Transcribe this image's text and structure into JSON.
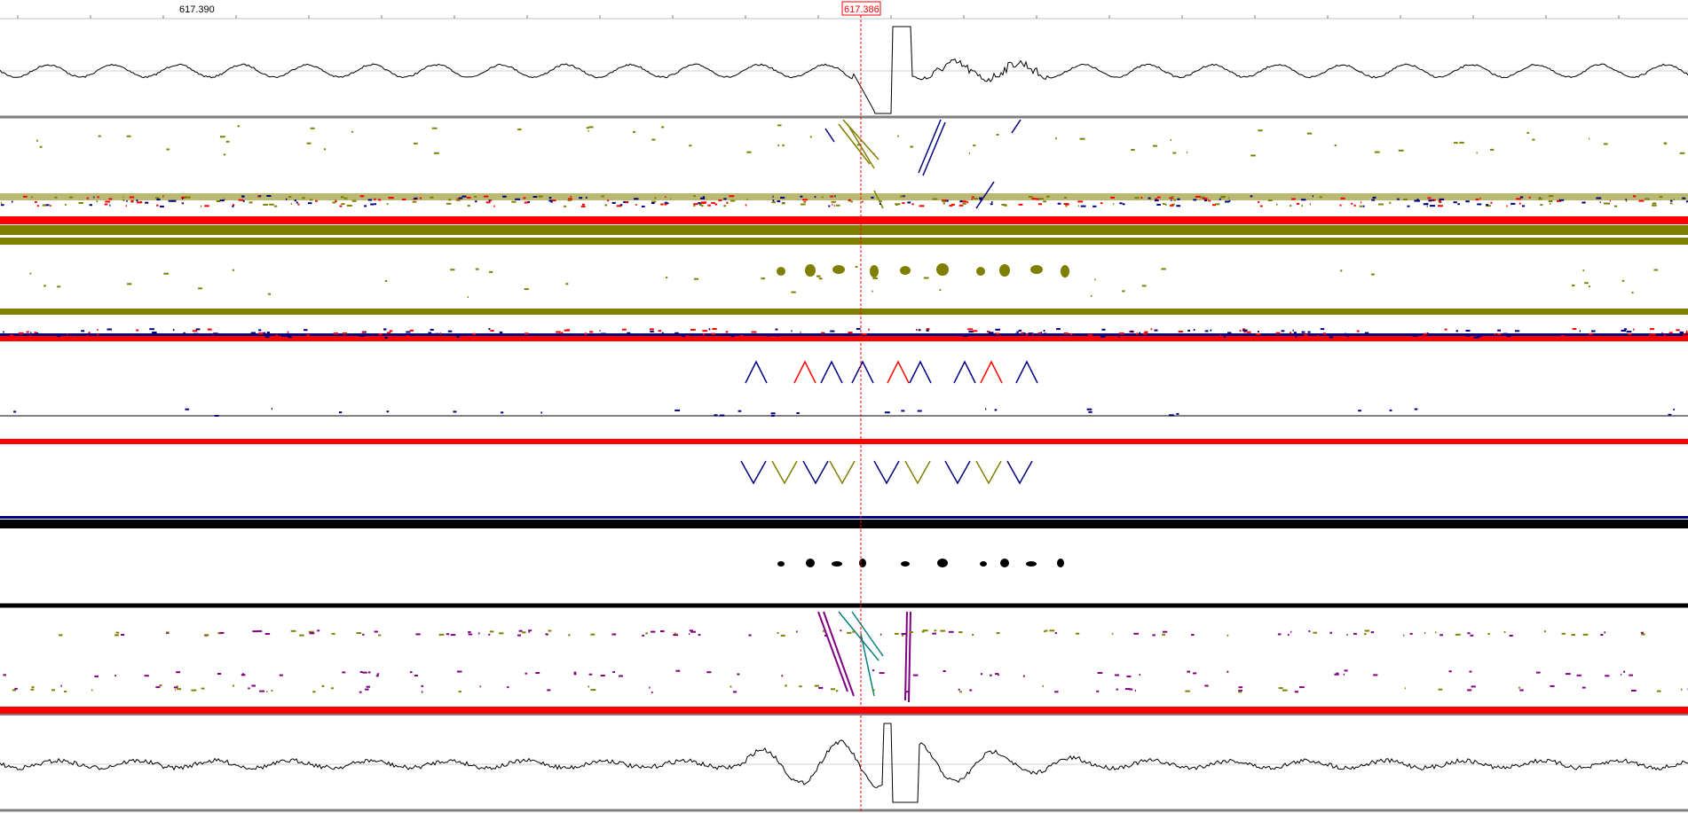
{
  "ruler": {
    "left_position_label": "617.390",
    "cursor_position_label": "617.386"
  },
  "colors": {
    "cursor_line": "#ff0000",
    "olive_layer": "#808000",
    "blue_layer": "#000080",
    "red_layer": "#ff0000",
    "black_layer": "#000000",
    "purple_layer": "#800080",
    "teal_layer": "#008080",
    "waveform": "#000000",
    "divider": "#808080"
  },
  "panels": [
    {
      "name": "top-waveform-panel"
    },
    {
      "name": "olive-channel-panel"
    },
    {
      "name": "blue-channel-panel-a"
    },
    {
      "name": "blue-channel-panel-b"
    },
    {
      "name": "black-channel-panel"
    },
    {
      "name": "purple-channel-panel"
    },
    {
      "name": "bottom-waveform-panel"
    }
  ]
}
